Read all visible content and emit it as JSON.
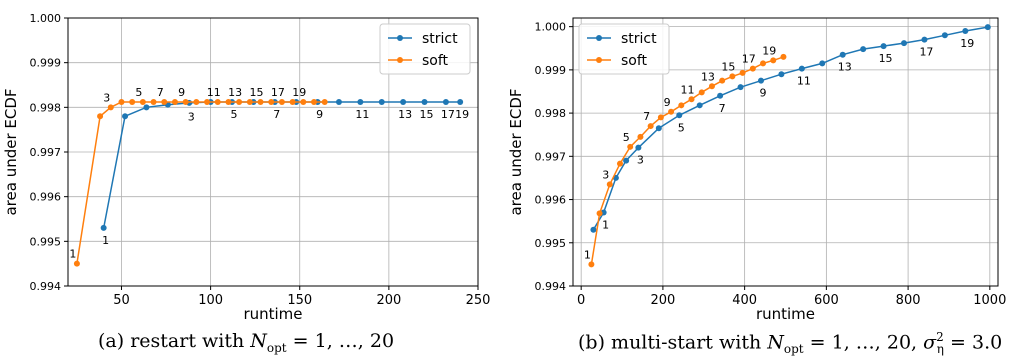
{
  "chart_data": [
    {
      "type": "line",
      "caption": {
        "label": "(a)",
        "text": "restart with",
        "var": "N",
        "sub": "opt",
        "rest": "= 1, …, 20"
      },
      "xlabel": "runtime",
      "ylabel": "area under ECDF",
      "xlim": [
        20,
        250
      ],
      "ylim": [
        0.994,
        1.0
      ],
      "xticks": [
        50,
        100,
        150,
        200,
        250
      ],
      "yticks": [
        0.994,
        0.995,
        0.996,
        0.997,
        0.998,
        0.999,
        1.0
      ],
      "ytick_labels": [
        "0.994",
        "0.995",
        "0.996",
        "0.997",
        "0.998",
        "0.999",
        "1.000"
      ],
      "grid": true,
      "legend": "top-right",
      "series": [
        {
          "name": "strict",
          "color": "#1f77b4",
          "x": [
            40,
            52,
            64,
            76,
            88,
            100,
            112,
            124,
            136,
            148,
            160,
            172,
            184,
            196,
            208,
            220,
            232,
            240
          ],
          "y": [
            0.9953,
            0.9978,
            0.998,
            0.99806,
            0.9981,
            0.99812,
            0.99812,
            0.99812,
            0.99812,
            0.99812,
            0.99812,
            0.99812,
            0.99812,
            0.99812,
            0.99812,
            0.99812,
            0.99812,
            0.99812
          ],
          "labels": [
            {
              "text": "1",
              "x": 40,
              "y": 0.9953
            },
            {
              "text": "3",
              "x": 88,
              "y": 0.99806
            },
            {
              "text": "5",
              "x": 112,
              "y": 0.99812
            },
            {
              "text": "7",
              "x": 136,
              "y": 0.99812
            },
            {
              "text": "9",
              "x": 160,
              "y": 0.99812
            },
            {
              "text": "11",
              "x": 184,
              "y": 0.99812
            },
            {
              "text": "13",
              "x": 208,
              "y": 0.99812
            },
            {
              "text": "15",
              "x": 220,
              "y": 0.99812
            },
            {
              "text": "17",
              "x": 232,
              "y": 0.99812
            },
            {
              "text": "19",
              "x": 240,
              "y": 0.99812
            }
          ]
        },
        {
          "name": "soft",
          "color": "#ff7f0e",
          "x": [
            25,
            38,
            44,
            50,
            56,
            62,
            68,
            74,
            80,
            86,
            92,
            98,
            104,
            110,
            116,
            122,
            128,
            134,
            140,
            146,
            152,
            158,
            164
          ],
          "y": [
            0.9945,
            0.9978,
            0.998,
            0.99812,
            0.99812,
            0.99812,
            0.99812,
            0.99812,
            0.99812,
            0.99812,
            0.99812,
            0.99812,
            0.99812,
            0.99812,
            0.99812,
            0.99812,
            0.99812,
            0.99812,
            0.99812,
            0.99812,
            0.99812,
            0.99812,
            0.99812
          ],
          "labels": [
            {
              "text": "1",
              "x": 25,
              "y": 0.9945
            },
            {
              "text": "3",
              "x": 44,
              "y": 0.998
            },
            {
              "text": "5",
              "x": 62,
              "y": 0.99812
            },
            {
              "text": "7",
              "x": 74,
              "y": 0.99812
            },
            {
              "text": "9",
              "x": 86,
              "y": 0.99812
            },
            {
              "text": "11",
              "x": 104,
              "y": 0.99812
            },
            {
              "text": "13",
              "x": 116,
              "y": 0.99812
            },
            {
              "text": "15",
              "x": 128,
              "y": 0.99812
            },
            {
              "text": "17",
              "x": 140,
              "y": 0.99812
            },
            {
              "text": "19",
              "x": 152,
              "y": 0.99812
            }
          ]
        }
      ]
    },
    {
      "type": "line",
      "caption": {
        "label": "(b)",
        "text": "multi-start with",
        "var": "N",
        "sub": "opt",
        "rest": "= 1, …, 20,",
        "sigma": "σ",
        "sigma_sub": "η",
        "sigma_sup": "2",
        "sigma_rest": "= 3.0"
      },
      "xlabel": "runtime",
      "ylabel": "area under ECDF",
      "xlim": [
        -20,
        1020
      ],
      "ylim": [
        0.994,
        1.0002
      ],
      "xticks": [
        0,
        200,
        400,
        600,
        800,
        1000
      ],
      "yticks": [
        0.994,
        0.995,
        0.996,
        0.997,
        0.998,
        0.999,
        1.0
      ],
      "ytick_labels": [
        "0.994",
        "0.995",
        "0.996",
        "0.997",
        "0.998",
        "0.999",
        "1.000"
      ],
      "grid": true,
      "legend": "top-left",
      "series": [
        {
          "name": "strict",
          "color": "#1f77b4",
          "x": [
            30,
            55,
            85,
            110,
            140,
            190,
            240,
            290,
            340,
            390,
            440,
            490,
            540,
            590,
            640,
            690,
            740,
            790,
            840,
            890,
            940,
            995
          ],
          "y": [
            0.9953,
            0.9957,
            0.9965,
            0.9969,
            0.9972,
            0.99765,
            0.99795,
            0.99818,
            0.9984,
            0.9986,
            0.99875,
            0.9989,
            0.99903,
            0.99915,
            0.99935,
            0.99948,
            0.99955,
            0.99962,
            0.9997,
            0.9998,
            0.9999,
            0.99999
          ],
          "labels": [
            {
              "text": "1",
              "x": 55,
              "y": 0.9957
            },
            {
              "text": "3",
              "x": 140,
              "y": 0.9972
            },
            {
              "text": "5",
              "x": 240,
              "y": 0.99795
            },
            {
              "text": "7",
              "x": 340,
              "y": 0.9984
            },
            {
              "text": "9",
              "x": 440,
              "y": 0.99875
            },
            {
              "text": "11",
              "x": 540,
              "y": 0.99903
            },
            {
              "text": "13",
              "x": 640,
              "y": 0.99935
            },
            {
              "text": "15",
              "x": 740,
              "y": 0.99955
            },
            {
              "text": "17",
              "x": 840,
              "y": 0.9997
            },
            {
              "text": "19",
              "x": 940,
              "y": 0.9999
            }
          ]
        },
        {
          "name": "soft",
          "color": "#ff7f0e",
          "x": [
            25,
            45,
            70,
            95,
            120,
            145,
            170,
            195,
            220,
            245,
            270,
            295,
            320,
            345,
            370,
            395,
            420,
            445,
            470,
            495
          ],
          "y": [
            0.9945,
            0.99568,
            0.99635,
            0.99683,
            0.99722,
            0.99745,
            0.9977,
            0.9979,
            0.99803,
            0.99818,
            0.99832,
            0.99848,
            0.99862,
            0.99875,
            0.99885,
            0.99893,
            0.99903,
            0.99915,
            0.99922,
            0.9993
          ],
          "labels": [
            {
              "text": "1",
              "x": 25,
              "y": 0.9945
            },
            {
              "text": "3",
              "x": 70,
              "y": 0.99635
            },
            {
              "text": "5",
              "x": 120,
              "y": 0.99722
            },
            {
              "text": "7",
              "x": 170,
              "y": 0.9977
            },
            {
              "text": "9",
              "x": 220,
              "y": 0.99803
            },
            {
              "text": "11",
              "x": 270,
              "y": 0.99832
            },
            {
              "text": "13",
              "x": 320,
              "y": 0.99862
            },
            {
              "text": "15",
              "x": 370,
              "y": 0.99885
            },
            {
              "text": "17",
              "x": 420,
              "y": 0.99903
            },
            {
              "text": "19",
              "x": 470,
              "y": 0.99922
            }
          ]
        }
      ]
    }
  ]
}
